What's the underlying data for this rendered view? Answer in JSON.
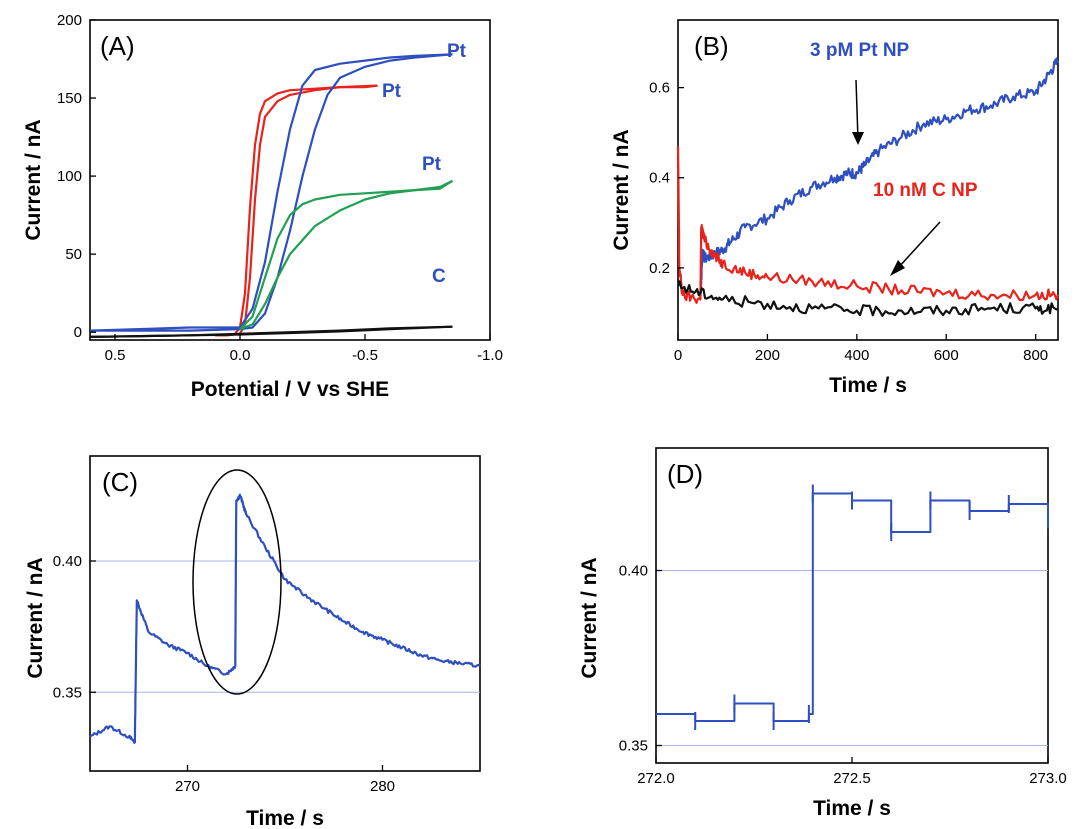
{
  "chart_data": [
    {
      "panel": "(A)",
      "type": "line",
      "xlabel": "Potential / V vs SHE",
      "ylabel": "Current / nA",
      "xlim": [
        0.6,
        -1.0
      ],
      "ylim": [
        -5,
        200
      ],
      "x_axis_reversed": true,
      "xticks": [
        0.5,
        0.0,
        -0.5,
        -1.0
      ],
      "xtick_labels": [
        "0.5",
        "0.0",
        "-0.5",
        "-1.0"
      ],
      "yticks": [
        0,
        50,
        100,
        150,
        200
      ],
      "ytick_labels": [
        "0",
        "50",
        "100",
        "150",
        "200"
      ],
      "grid": false,
      "series": [
        {
          "color": "#e8231c",
          "x": [
            0.1,
            0.05,
            0.02,
            0.0,
            -0.02,
            -0.04,
            -0.06,
            -0.08,
            -0.1,
            -0.15,
            -0.2,
            -0.3,
            -0.4,
            -0.5,
            -0.55
          ],
          "y": [
            -2,
            -2,
            -1,
            3,
            25,
            80,
            120,
            140,
            148,
            153,
            155,
            156,
            157,
            157,
            158
          ]
        },
        {
          "color": "#e8231c",
          "x": [
            -0.55,
            -0.4,
            -0.3,
            -0.2,
            -0.15,
            -0.1,
            -0.08,
            -0.06,
            -0.04,
            -0.02,
            0.0,
            0.05,
            0.1
          ],
          "y": [
            158,
            157,
            155,
            152,
            148,
            138,
            120,
            85,
            35,
            5,
            -1,
            -2,
            -2
          ]
        },
        {
          "color": "#2e4fbf",
          "x": [
            0.6,
            0.4,
            0.2,
            0.1,
            0.0,
            -0.05,
            -0.1,
            -0.15,
            -0.2,
            -0.25,
            -0.3,
            -0.4,
            -0.5,
            -0.6,
            -0.7,
            -0.85
          ],
          "y": [
            1,
            2,
            3,
            3,
            3,
            15,
            45,
            90,
            130,
            158,
            168,
            172,
            174,
            176,
            177,
            178
          ]
        },
        {
          "color": "#2e4fbf",
          "x": [
            -0.85,
            -0.7,
            -0.6,
            -0.5,
            -0.4,
            -0.35,
            -0.3,
            -0.25,
            -0.2,
            -0.15,
            -0.1,
            -0.05,
            0.0,
            0.2,
            0.6
          ],
          "y": [
            178,
            176,
            174,
            170,
            163,
            152,
            130,
            100,
            65,
            35,
            12,
            3,
            2,
            1,
            1
          ]
        },
        {
          "color": "#20a050",
          "x": [
            0.0,
            -0.05,
            -0.1,
            -0.15,
            -0.2,
            -0.25,
            -0.3,
            -0.4,
            -0.5,
            -0.6,
            -0.7,
            -0.8,
            -0.85
          ],
          "y": [
            2,
            10,
            35,
            60,
            75,
            82,
            85,
            88,
            89,
            90,
            91,
            92,
            97
          ]
        },
        {
          "color": "#20a050",
          "x": [
            -0.85,
            -0.8,
            -0.7,
            -0.6,
            -0.5,
            -0.4,
            -0.3,
            -0.2,
            -0.15,
            -0.1,
            -0.05,
            0.0
          ],
          "y": [
            97,
            93,
            91,
            89,
            85,
            78,
            68,
            50,
            35,
            18,
            5,
            2
          ]
        },
        {
          "color": "#111111",
          "x": [
            0.6,
            0.4,
            0.2,
            0.0,
            -0.2,
            -0.4,
            -0.6,
            -0.85
          ],
          "y": [
            -3,
            -2.5,
            -2,
            -1.5,
            -0.5,
            0.5,
            2,
            3.5
          ]
        },
        {
          "color": "#111111",
          "x": [
            -0.85,
            -0.6,
            -0.4,
            -0.2,
            0.0,
            0.2,
            0.4,
            0.6
          ],
          "y": [
            3.5,
            2.5,
            1,
            0,
            -1,
            -2,
            -2.5,
            -3
          ]
        }
      ],
      "annotations": [
        {
          "text": "Pt",
          "x": -0.85,
          "y": 178,
          "color": "#2e4fbf"
        },
        {
          "text": "Pt",
          "x": -0.58,
          "y": 152,
          "color": "#2e4fbf"
        },
        {
          "text": "Pt",
          "x": -0.78,
          "y": 101,
          "color": "#2e4fbf"
        },
        {
          "text": "C",
          "x": -0.8,
          "y": 19,
          "color": "#2e4fbf"
        }
      ]
    },
    {
      "panel": "(B)",
      "type": "line",
      "xlabel": "Time / s",
      "ylabel": "Current / nA",
      "xlim": [
        0,
        850
      ],
      "ylim": [
        0.04,
        0.75
      ],
      "xticks": [
        0,
        200,
        400,
        600,
        800
      ],
      "xtick_labels": [
        "0",
        "200",
        "400",
        "600",
        "800"
      ],
      "yticks": [
        0.2,
        0.4,
        0.6
      ],
      "ytick_labels": [
        "0.2",
        "0.4",
        "0.6"
      ],
      "grid": false,
      "series": [
        {
          "name": "3 pM Pt NP",
          "color": "#2e4fbf",
          "x": [
            50,
            55,
            60,
            80,
            100,
            120,
            150,
            200,
            250,
            300,
            350,
            380,
            400,
            420,
            450,
            500,
            550,
            600,
            650,
            700,
            750,
            800,
            830,
            850
          ],
          "y": [
            0.13,
            0.24,
            0.22,
            0.23,
            0.24,
            0.26,
            0.29,
            0.31,
            0.35,
            0.38,
            0.4,
            0.41,
            0.41,
            0.43,
            0.46,
            0.49,
            0.52,
            0.53,
            0.55,
            0.56,
            0.58,
            0.59,
            0.63,
            0.66
          ]
        },
        {
          "name": "10 nM C NP",
          "color": "#e8231c",
          "x": [
            0,
            3,
            10,
            50,
            52,
            60,
            80,
            100,
            150,
            200,
            300,
            400,
            500,
            600,
            700,
            800,
            850
          ],
          "y": [
            0.47,
            0.2,
            0.14,
            0.13,
            0.29,
            0.26,
            0.23,
            0.21,
            0.19,
            0.18,
            0.17,
            0.16,
            0.15,
            0.145,
            0.14,
            0.14,
            0.14
          ]
        },
        {
          "color": "#111111",
          "x": [
            0,
            50,
            100,
            200,
            300,
            400,
            500,
            600,
            700,
            800,
            850
          ],
          "y": [
            0.16,
            0.145,
            0.13,
            0.12,
            0.11,
            0.105,
            0.105,
            0.105,
            0.11,
            0.11,
            0.11
          ]
        }
      ],
      "annotations": [
        {
          "text": "3 pM Pt NP",
          "color": "#2e4fbf"
        },
        {
          "text": "10 nM C NP",
          "color": "#e8231c"
        }
      ]
    },
    {
      "panel": "(C)",
      "type": "line",
      "xlabel": "Time / s",
      "ylabel": "Current / nA",
      "xlim": [
        265,
        285
      ],
      "ylim": [
        0.32,
        0.44
      ],
      "xticks": [
        270,
        280
      ],
      "xtick_labels": [
        "270",
        "280"
      ],
      "yticks": [
        0.35,
        0.4
      ],
      "ytick_labels": [
        "0.35",
        "0.40"
      ],
      "grid": true,
      "series": [
        {
          "color": "#2e4fbf",
          "x": [
            265,
            266,
            267,
            267.3,
            267.4,
            268,
            269,
            270,
            271,
            272,
            272.45,
            272.5,
            272.7,
            273,
            274,
            275,
            276,
            277,
            278,
            279,
            280,
            281,
            282,
            283,
            284,
            285
          ],
          "y": [
            0.333,
            0.337,
            0.333,
            0.331,
            0.385,
            0.373,
            0.368,
            0.365,
            0.36,
            0.357,
            0.36,
            0.423,
            0.425,
            0.418,
            0.405,
            0.393,
            0.387,
            0.382,
            0.377,
            0.373,
            0.37,
            0.367,
            0.364,
            0.362,
            0.361,
            0.36
          ]
        }
      ]
    },
    {
      "panel": "(D)",
      "type": "line",
      "xlabel": "Time / s",
      "ylabel": "Current / nA",
      "xlim": [
        272.0,
        273.0
      ],
      "ylim": [
        0.345,
        0.435
      ],
      "xticks": [
        272.0,
        272.5,
        273.0
      ],
      "xtick_labels": [
        "272.0",
        "272.5",
        "273.0"
      ],
      "yticks": [
        0.35,
        0.4
      ],
      "ytick_labels": [
        "0.35",
        "0.40"
      ],
      "grid": true,
      "series": [
        {
          "color": "#2e4fbf",
          "x": [
            272.0,
            272.1,
            272.2,
            272.3,
            272.39,
            272.4,
            272.5,
            272.6,
            272.7,
            272.8,
            272.9,
            273.0
          ],
          "y": [
            0.359,
            0.357,
            0.362,
            0.357,
            0.359,
            0.422,
            0.42,
            0.411,
            0.42,
            0.417,
            0.419,
            0.412
          ]
        }
      ]
    }
  ]
}
